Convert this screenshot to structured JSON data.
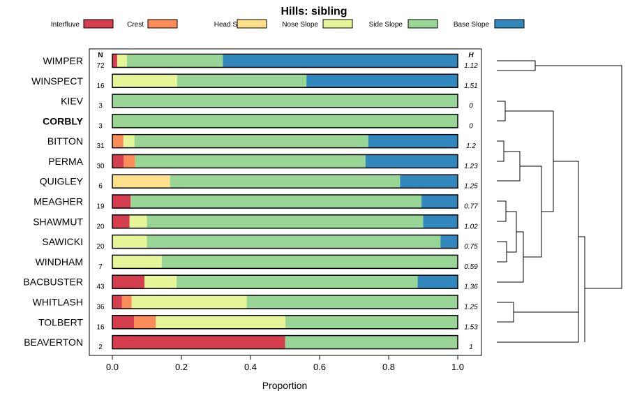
{
  "chart_data": {
    "type": "bar",
    "orientation": "horizontal",
    "stacked": true,
    "title": "Hills: sibling",
    "xlabel": "Proportion",
    "ylabel": "",
    "xlim": [
      0,
      1
    ],
    "x_ticks": [
      "0.0",
      "0.2",
      "0.4",
      "0.6",
      "0.8",
      "1.0"
    ],
    "n_header": "N",
    "h_header": "H",
    "highlighted_category": "CORBLY",
    "legend_position": "top",
    "categories": [
      "WIMPER",
      "WINSPECT",
      "KIEV",
      "CORBLY",
      "BITTON",
      "PERMA",
      "QUIGLEY",
      "MEAGHER",
      "SHAWMUT",
      "SAWICKI",
      "WINDHAM",
      "BACBUSTER",
      "WHITLASH",
      "TOLBERT",
      "BEAVERTON"
    ],
    "n": [
      "72",
      "16",
      "3",
      "3",
      "31",
      "30",
      "6",
      "19",
      "20",
      "20",
      "7",
      "43",
      "36",
      "16",
      "2"
    ],
    "h": [
      "1.12",
      "1.51",
      "0",
      "0",
      "1.2",
      "1.23",
      "1.25",
      "0.77",
      "1.02",
      "0.75",
      "0.59",
      "1.36",
      "1.25",
      "1.53",
      "1"
    ],
    "series": [
      {
        "name": "Interfluve",
        "color": "#d53e4f",
        "values": [
          0.014,
          0,
          0,
          0,
          0,
          0.033,
          0,
          0.053,
          0.05,
          0,
          0,
          0.093,
          0.028,
          0.063,
          0.5
        ]
      },
      {
        "name": "Crest",
        "color": "#fc8d59",
        "values": [
          0,
          0,
          0,
          0,
          0.032,
          0.033,
          0,
          0,
          0,
          0,
          0,
          0,
          0.028,
          0.063,
          0
        ]
      },
      {
        "name": "Head Slope",
        "color": "#fee08b",
        "values": [
          0,
          0,
          0,
          0,
          0,
          0,
          0.167,
          0,
          0,
          0,
          0,
          0,
          0,
          0,
          0
        ]
      },
      {
        "name": "Nose Slope",
        "color": "#e6f598",
        "values": [
          0.028,
          0.188,
          0,
          0,
          0.032,
          0,
          0,
          0,
          0.05,
          0.1,
          0.143,
          0.093,
          0.333,
          0.375,
          0
        ]
      },
      {
        "name": "Side Slope",
        "color": "#99d594",
        "values": [
          0.278,
          0.374,
          1,
          1,
          0.677,
          0.667,
          0.666,
          0.842,
          0.8,
          0.85,
          0.857,
          0.698,
          0.611,
          0.499,
          0.5
        ]
      },
      {
        "name": "Base Slope",
        "color": "#3288bd",
        "values": [
          0.68,
          0.438,
          0,
          0,
          0.259,
          0.267,
          0.167,
          0.105,
          0.1,
          0.05,
          0,
          0.116,
          0,
          0,
          0
        ]
      }
    ]
  }
}
